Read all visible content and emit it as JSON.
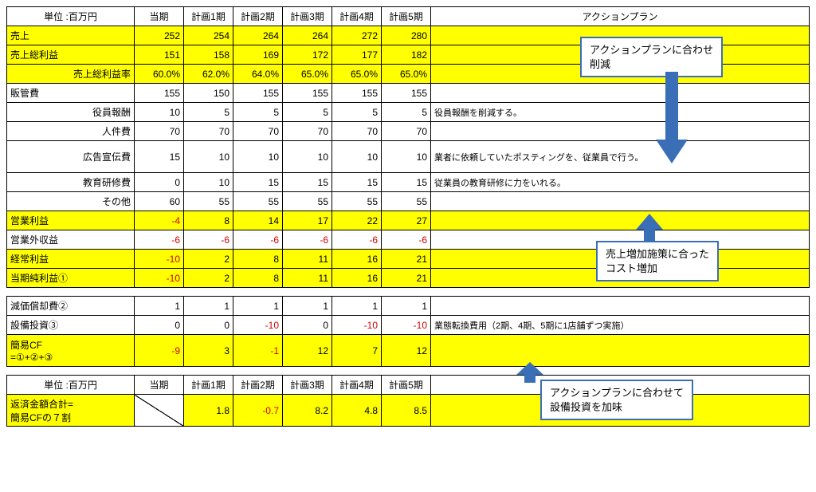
{
  "colors": {
    "highlight": "#ffff00",
    "border": "#000000",
    "negative": "#d40000",
    "callout_border": "#3a6fb7",
    "arrow_fill": "#3a6fb7"
  },
  "headers": {
    "unit": "単位 :百万円",
    "cur": "当期",
    "p1": "計画1期",
    "p2": "計画2期",
    "p3": "計画3期",
    "p4": "計画4期",
    "p5": "計画5期",
    "action": "アクションプラン"
  },
  "rows": {
    "sales": {
      "label": "売上",
      "vals": [
        "252",
        "254",
        "264",
        "264",
        "272",
        "280"
      ],
      "hl": true
    },
    "gross": {
      "label": "売上総利益",
      "vals": [
        "151",
        "158",
        "169",
        "172",
        "177",
        "182"
      ],
      "hl": true
    },
    "gross_rate": {
      "label": "売上総利益率",
      "vals": [
        "60.0%",
        "62.0%",
        "64.0%",
        "65.0%",
        "65.0%",
        "65.0%"
      ],
      "hl": true,
      "indent": true
    },
    "sga": {
      "label": "販管費",
      "vals": [
        "155",
        "150",
        "155",
        "155",
        "155",
        "155"
      ]
    },
    "officer": {
      "label": "役員報酬",
      "vals": [
        "10",
        "5",
        "5",
        "5",
        "5",
        "5"
      ],
      "indent": true,
      "action": "役員報酬を削減する。"
    },
    "labor": {
      "label": "人件費",
      "vals": [
        "70",
        "70",
        "70",
        "70",
        "70",
        "70"
      ],
      "indent": true
    },
    "ad": {
      "label": "広告宣伝費",
      "vals": [
        "15",
        "10",
        "10",
        "10",
        "10",
        "10"
      ],
      "indent": true,
      "action": "業者に依頼していたポスティングを、従業員で行う。",
      "tall": true
    },
    "train": {
      "label": "教育研修費",
      "vals": [
        "0",
        "10",
        "15",
        "15",
        "15",
        "15"
      ],
      "indent": true,
      "action": "従業員の教育研修に力をいれる。"
    },
    "other": {
      "label": "その他",
      "vals": [
        "60",
        "55",
        "55",
        "55",
        "55",
        "55"
      ],
      "indent": true
    },
    "op": {
      "label": "営業利益",
      "vals": [
        "-4",
        "8",
        "14",
        "17",
        "22",
        "27"
      ],
      "hl": true
    },
    "nonop": {
      "label": "営業外収益",
      "vals": [
        "-6",
        "-6",
        "-6",
        "-6",
        "-6",
        "-6"
      ]
    },
    "ord": {
      "label": "経常利益",
      "vals": [
        "-10",
        "2",
        "8",
        "11",
        "16",
        "21"
      ],
      "hl": true
    },
    "net": {
      "label": "当期純利益①",
      "vals": [
        "-10",
        "2",
        "8",
        "11",
        "16",
        "21"
      ],
      "hl": true
    }
  },
  "rows2": {
    "dep": {
      "label": "減価償却費②",
      "vals": [
        "1",
        "1",
        "1",
        "1",
        "1",
        "1"
      ]
    },
    "capex": {
      "label": "設備投資③",
      "vals": [
        "0",
        "0",
        "-10",
        "0",
        "-10",
        "-10"
      ],
      "action": "業態転換費用（2期、4期、5期に1店舗ずつ実施）"
    },
    "cf": {
      "label": "簡易CF\n=①+②+③",
      "vals": [
        "-9",
        "3",
        "-1",
        "12",
        "7",
        "12"
      ],
      "hl": true,
      "tall": true
    }
  },
  "rows3": {
    "repay": {
      "label": "返済金額合計=\n簡易CFの７割",
      "vals": [
        "",
        "1.8",
        "-0.7",
        "8.2",
        "4.8",
        "8.5"
      ],
      "hl": true,
      "slash_first": true,
      "tall": true
    }
  },
  "callouts": {
    "c1": "アクションプランに合わせ\n削減",
    "c2": "売上増加施策に合った\nコスト増加",
    "c3": "アクションプランに合わせて\n設備投資を加味"
  }
}
